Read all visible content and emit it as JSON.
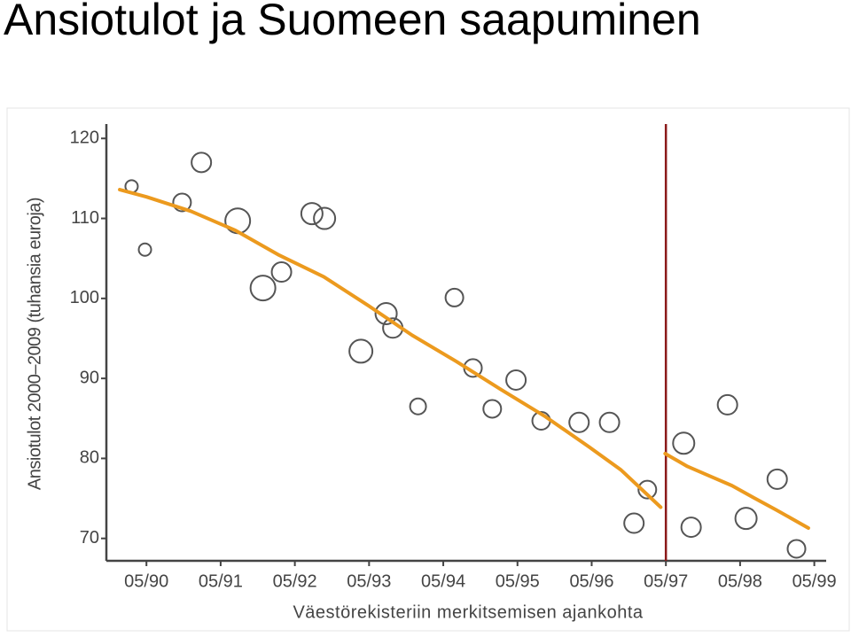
{
  "title": "Ansiotulot ja Suomeen saapuminen",
  "chart_data": {
    "type": "scatter",
    "x_label": "Väestörekisteriin merkitsemisen ajankohta",
    "y_label": "Ansiotulot 2000–2009 (tuhansia euroja)",
    "xlim": [
      1989.79,
      1999.49
    ],
    "ylim": [
      67.2,
      121.8
    ],
    "xticks": [
      {
        "value": 1990.33,
        "label": "05/90"
      },
      {
        "value": 1991.33,
        "label": "05/91"
      },
      {
        "value": 1992.33,
        "label": "05/92"
      },
      {
        "value": 1993.33,
        "label": "05/93"
      },
      {
        "value": 1994.33,
        "label": "05/94"
      },
      {
        "value": 1995.33,
        "label": "05/95"
      },
      {
        "value": 1996.33,
        "label": "05/96"
      },
      {
        "value": 1997.33,
        "label": "05/97"
      },
      {
        "value": 1998.33,
        "label": "05/98"
      },
      {
        "value": 1999.33,
        "label": "05/99"
      }
    ],
    "yticks": [
      70,
      80,
      90,
      100,
      110,
      120
    ],
    "points": {
      "color": "#555555",
      "x": [
        1990.13,
        1990.31,
        1990.81,
        1991.07,
        1991.56,
        1991.9,
        1992.15,
        1992.56,
        1992.73,
        1993.22,
        1993.56,
        1993.65,
        1993.99,
        1994.48,
        1994.73,
        1994.99,
        1995.31,
        1995.65,
        1996.16,
        1996.57,
        1996.9,
        1997.08,
        1997.57,
        1997.67,
        1998.16,
        1998.41,
        1998.83,
        1999.09
      ],
      "y": [
        114.0,
        106.1,
        112.0,
        117.0,
        109.7,
        101.3,
        103.3,
        110.6,
        110.0,
        93.4,
        98.1,
        96.3,
        86.5,
        100.1,
        91.3,
        86.2,
        89.8,
        84.7,
        84.5,
        84.5,
        71.9,
        76.1,
        81.9,
        71.4,
        86.7,
        72.5,
        77.4,
        68.7
      ],
      "sizes": [
        7,
        7,
        10,
        11,
        14,
        14,
        11,
        12,
        12,
        13,
        12,
        11,
        9,
        10,
        10,
        10,
        11,
        10,
        11,
        11,
        11,
        10,
        12,
        11,
        11,
        12,
        11,
        10
      ]
    },
    "trend": [
      {
        "color": "#ec9a1e",
        "x": [
          1989.97,
          1990.33,
          1990.93,
          1991.53,
          1992.12,
          1992.72,
          1993.32,
          1993.91,
          1994.51,
          1995.11,
          1995.71,
          1996.3,
          1996.72,
          1997.26
        ],
        "y": [
          113.6,
          112.7,
          110.9,
          108.5,
          105.4,
          102.7,
          99.1,
          95.4,
          92.1,
          88.6,
          85.2,
          81.4,
          78.6,
          73.9
        ]
      },
      {
        "color": "#ec9a1e",
        "x": [
          1997.32,
          1997.62,
          1997.92,
          1998.22,
          1998.51,
          1998.81,
          1999.25
        ],
        "y": [
          80.6,
          79.0,
          77.8,
          76.6,
          75.1,
          73.6,
          71.3
        ]
      }
    ],
    "cutoff": {
      "x": 1997.33,
      "color": "#8b1a1a"
    }
  }
}
